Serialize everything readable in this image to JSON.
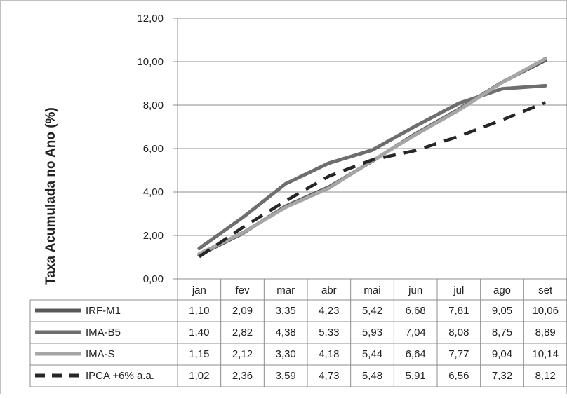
{
  "chart_data": {
    "type": "line",
    "ylabel": "Taxa Acumulada no Ano (%)",
    "ylim": [
      0,
      12
    ],
    "yticks": [
      "0,00",
      "2,00",
      "4,00",
      "6,00",
      "8,00",
      "10,00",
      "12,00"
    ],
    "categories": [
      "jan",
      "fev",
      "mar",
      "abr",
      "mai",
      "jun",
      "jul",
      "ago",
      "set"
    ],
    "grid": true,
    "legend": "data table below plot",
    "series": [
      {
        "name": "IRF-M1",
        "color": "#595959",
        "dashed": false,
        "values": [
          1.1,
          2.09,
          3.35,
          4.23,
          5.42,
          6.68,
          7.81,
          9.05,
          10.06
        ],
        "labels": [
          "1,10",
          "2,09",
          "3,35",
          "4,23",
          "5,42",
          "6,68",
          "7,81",
          "9,05",
          "10,06"
        ]
      },
      {
        "name": "IMA-B5",
        "color": "#6e6e6e",
        "dashed": false,
        "values": [
          1.4,
          2.82,
          4.38,
          5.33,
          5.93,
          7.04,
          8.08,
          8.75,
          8.89
        ],
        "labels": [
          "1,40",
          "2,82",
          "4,38",
          "5,33",
          "5,93",
          "7,04",
          "8,08",
          "8,75",
          "8,89"
        ]
      },
      {
        "name": "IMA-S",
        "color": "#a6a6a6",
        "dashed": false,
        "values": [
          1.15,
          2.12,
          3.3,
          4.18,
          5.44,
          6.64,
          7.77,
          9.04,
          10.14
        ],
        "labels": [
          "1,15",
          "2,12",
          "3,30",
          "4,18",
          "5,44",
          "6,64",
          "7,77",
          "9,04",
          "10,14"
        ]
      },
      {
        "name": "IPCA +6% a.a.",
        "color": "#262626",
        "dashed": true,
        "values": [
          1.02,
          2.36,
          3.59,
          4.73,
          5.48,
          5.91,
          6.56,
          7.32,
          8.12
        ],
        "labels": [
          "1,02",
          "2,36",
          "3,59",
          "4,73",
          "5,48",
          "5,91",
          "6,56",
          "7,32",
          "8,12"
        ]
      }
    ]
  }
}
